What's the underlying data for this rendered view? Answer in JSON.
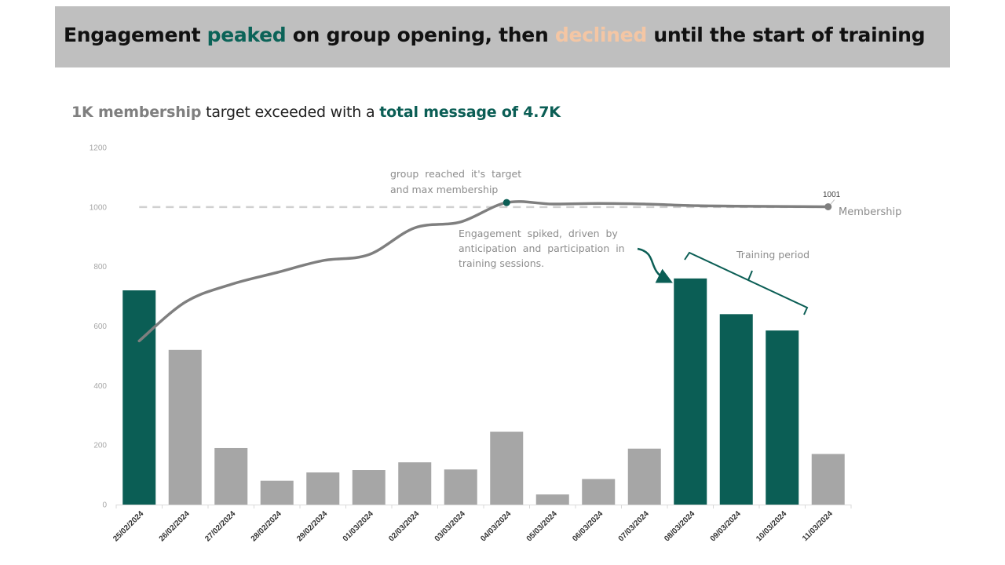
{
  "title": {
    "part1": "Engagement ",
    "peaked": "peaked",
    "part2": " on group opening, then ",
    "declined": "declined",
    "part3": " until the start of training"
  },
  "subtitle": {
    "part1": "1K membership",
    "part2": " target exceeded with a ",
    "part3": "total message of 4.7K"
  },
  "colors": {
    "banner": "#bfbfbf",
    "peaked": "#0b6358",
    "declined": "#f4c6a4",
    "highlight_bar": "#0b5e55",
    "normal_bar": "#a6a6a6",
    "membership_line": "#7f7f7f",
    "subtitle_grey": "#7f7f7f",
    "subtitle_green": "#0b5e55"
  },
  "chart_data": {
    "type": "bar",
    "categories": [
      "25/02/2024",
      "26/02/2024",
      "27/02/2024",
      "28/02/2024",
      "29/02/2024",
      "01/03/2024",
      "02/03/2024",
      "03/03/2024",
      "04/03/2024",
      "05/03/2024",
      "06/03/2024",
      "07/03/2024",
      "08/03/2024",
      "09/03/2024",
      "10/03/2024",
      "11/03/2024"
    ],
    "series": [
      {
        "values": [
          720,
          520,
          190,
          80,
          108,
          116,
          142,
          118,
          245,
          34,
          86,
          188,
          760,
          640,
          585,
          170
        ],
        "highlight": [
          true,
          false,
          false,
          false,
          false,
          false,
          false,
          false,
          false,
          false,
          false,
          false,
          true,
          true,
          true,
          false
        ]
      },
      {
        "name": "Membership",
        "type": "line",
        "values": [
          550,
          680,
          740,
          780,
          820,
          840,
          930,
          950,
          1015,
          1010,
          1012,
          1010,
          1005,
          1003,
          1002,
          1001
        ]
      }
    ],
    "target": 1000,
    "ylim": [
      0,
      1200
    ],
    "yticks": [
      "0",
      "200",
      "400",
      "600",
      "800",
      "1000",
      "1200"
    ],
    "end_label": "1001",
    "annotations": {
      "target": [
        "group  reached  it's  target",
        "and max membership"
      ],
      "spike": [
        "Engagement  spiked,  driven  by",
        "anticipation  and  participation  in",
        "training sessions."
      ],
      "training": "Training period"
    },
    "grid": false
  }
}
